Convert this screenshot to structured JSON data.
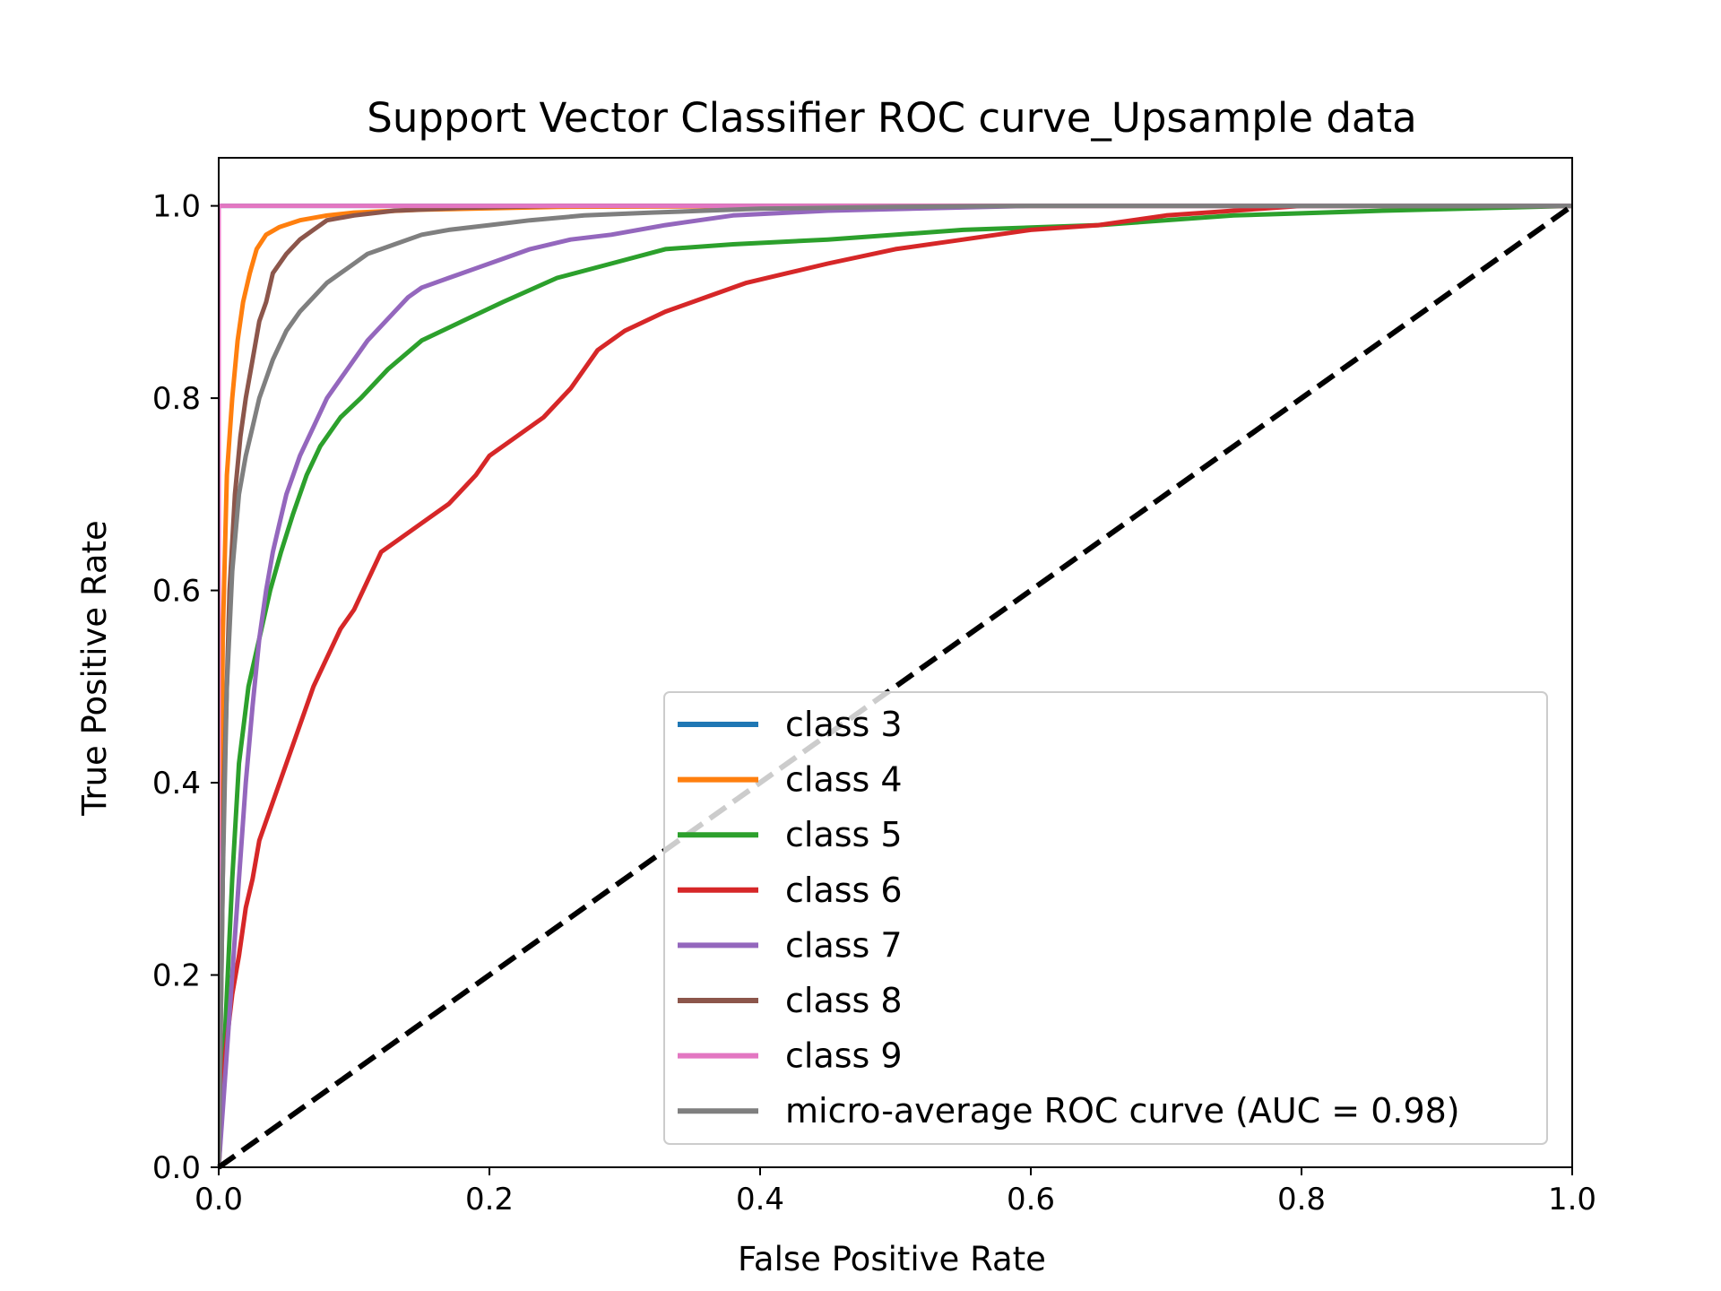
{
  "chart_data": {
    "type": "line",
    "title": "Support Vector Classifier ROC curve_Upsample data",
    "xlabel": "False Positive Rate",
    "ylabel": "True Positive Rate",
    "xlim": [
      0.0,
      1.0
    ],
    "ylim": [
      0.0,
      1.05
    ],
    "xticks": [
      0.0,
      0.2,
      0.4,
      0.6,
      0.8,
      1.0
    ],
    "yticks": [
      0.0,
      0.2,
      0.4,
      0.6,
      0.8,
      1.0
    ],
    "xtick_labels": [
      "0.0",
      "0.2",
      "0.4",
      "0.6",
      "0.8",
      "1.0"
    ],
    "ytick_labels": [
      "0.0",
      "0.2",
      "0.4",
      "0.6",
      "0.8",
      "1.0"
    ],
    "grid": false,
    "legend_position": "lower-right",
    "series": [
      {
        "name": "class 3",
        "color": "#1f77b4",
        "x": [
          0.0,
          0.0,
          1.0
        ],
        "y": [
          0.0,
          1.0,
          1.0
        ]
      },
      {
        "name": "class 4",
        "color": "#ff7f0e",
        "x": [
          0.0,
          0.003,
          0.006,
          0.01,
          0.014,
          0.018,
          0.023,
          0.028,
          0.035,
          0.045,
          0.06,
          0.08,
          0.1,
          0.15,
          0.25,
          0.5,
          1.0
        ],
        "y": [
          0.0,
          0.55,
          0.72,
          0.8,
          0.86,
          0.9,
          0.93,
          0.955,
          0.97,
          0.978,
          0.985,
          0.99,
          0.993,
          0.996,
          0.999,
          1.0,
          1.0
        ]
      },
      {
        "name": "class 5",
        "color": "#2ca02c",
        "x": [
          0.0,
          0.005,
          0.01,
          0.015,
          0.022,
          0.03,
          0.038,
          0.046,
          0.055,
          0.065,
          0.075,
          0.09,
          0.105,
          0.125,
          0.15,
          0.18,
          0.21,
          0.25,
          0.29,
          0.33,
          0.38,
          0.45,
          0.55,
          0.65,
          0.75,
          0.86,
          1.0
        ],
        "y": [
          0.0,
          0.15,
          0.3,
          0.42,
          0.5,
          0.55,
          0.6,
          0.64,
          0.68,
          0.72,
          0.75,
          0.78,
          0.8,
          0.83,
          0.86,
          0.88,
          0.9,
          0.925,
          0.94,
          0.955,
          0.96,
          0.965,
          0.975,
          0.98,
          0.99,
          0.995,
          1.0
        ]
      },
      {
        "name": "class 6",
        "color": "#d62728",
        "x": [
          0.0,
          0.005,
          0.01,
          0.015,
          0.02,
          0.025,
          0.03,
          0.04,
          0.05,
          0.06,
          0.07,
          0.08,
          0.09,
          0.1,
          0.11,
          0.12,
          0.13,
          0.15,
          0.17,
          0.19,
          0.2,
          0.22,
          0.24,
          0.26,
          0.28,
          0.3,
          0.33,
          0.36,
          0.39,
          0.42,
          0.45,
          0.5,
          0.55,
          0.6,
          0.65,
          0.7,
          0.75,
          0.8,
          1.0
        ],
        "y": [
          0.0,
          0.12,
          0.18,
          0.22,
          0.27,
          0.3,
          0.34,
          0.38,
          0.42,
          0.46,
          0.5,
          0.53,
          0.56,
          0.58,
          0.61,
          0.64,
          0.65,
          0.67,
          0.69,
          0.72,
          0.74,
          0.76,
          0.78,
          0.81,
          0.85,
          0.87,
          0.89,
          0.905,
          0.92,
          0.93,
          0.94,
          0.955,
          0.965,
          0.975,
          0.98,
          0.99,
          0.995,
          1.0,
          1.0
        ]
      },
      {
        "name": "class 7",
        "color": "#9467bd",
        "x": [
          0.0,
          0.005,
          0.01,
          0.015,
          0.02,
          0.025,
          0.03,
          0.035,
          0.04,
          0.045,
          0.05,
          0.055,
          0.06,
          0.07,
          0.08,
          0.09,
          0.1,
          0.11,
          0.12,
          0.13,
          0.14,
          0.15,
          0.17,
          0.19,
          0.21,
          0.23,
          0.26,
          0.29,
          0.33,
          0.38,
          0.45,
          0.6,
          1.0
        ],
        "y": [
          0.0,
          0.1,
          0.2,
          0.3,
          0.4,
          0.48,
          0.55,
          0.6,
          0.64,
          0.67,
          0.7,
          0.72,
          0.74,
          0.77,
          0.8,
          0.82,
          0.84,
          0.86,
          0.875,
          0.89,
          0.905,
          0.915,
          0.925,
          0.935,
          0.945,
          0.955,
          0.965,
          0.97,
          0.98,
          0.99,
          0.995,
          1.0,
          1.0
        ]
      },
      {
        "name": "class 8",
        "color": "#8c564b",
        "x": [
          0.0,
          0.004,
          0.008,
          0.012,
          0.016,
          0.02,
          0.025,
          0.03,
          0.035,
          0.04,
          0.05,
          0.06,
          0.07,
          0.08,
          0.1,
          0.13,
          0.18,
          0.25,
          0.4,
          1.0
        ],
        "y": [
          0.0,
          0.4,
          0.6,
          0.7,
          0.76,
          0.8,
          0.84,
          0.88,
          0.9,
          0.93,
          0.95,
          0.965,
          0.975,
          0.985,
          0.99,
          0.995,
          0.998,
          1.0,
          1.0,
          1.0
        ]
      },
      {
        "name": "class 9",
        "color": "#e377c2",
        "x": [
          0.0,
          0.0,
          1.0
        ],
        "y": [
          0.0,
          1.0,
          1.0
        ]
      },
      {
        "name": "micro-average ROC curve (AUC = 0.98)",
        "color": "#7f7f7f",
        "x": [
          0.0,
          0.003,
          0.006,
          0.01,
          0.015,
          0.02,
          0.025,
          0.03,
          0.035,
          0.04,
          0.045,
          0.05,
          0.06,
          0.07,
          0.08,
          0.09,
          0.1,
          0.11,
          0.12,
          0.13,
          0.15,
          0.17,
          0.2,
          0.23,
          0.27,
          0.32,
          0.4,
          0.5,
          0.6,
          1.0
        ],
        "y": [
          0.0,
          0.3,
          0.5,
          0.62,
          0.7,
          0.74,
          0.77,
          0.8,
          0.82,
          0.84,
          0.855,
          0.87,
          0.89,
          0.905,
          0.92,
          0.93,
          0.94,
          0.95,
          0.955,
          0.96,
          0.97,
          0.975,
          0.98,
          0.985,
          0.99,
          0.993,
          0.997,
          0.999,
          1.0,
          1.0
        ]
      }
    ],
    "reference_line": {
      "name": "chance diagonal",
      "color": "#000000",
      "style": "dashed",
      "x": [
        0.0,
        1.0
      ],
      "y": [
        0.0,
        1.0
      ]
    }
  }
}
